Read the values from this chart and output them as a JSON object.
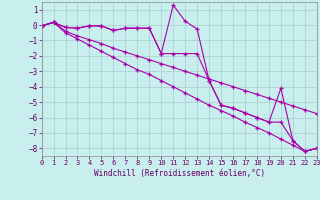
{
  "xlabel": "Windchill (Refroidissement éolien,°C)",
  "background_color": "#c8eeee",
  "line_color": "#aa00aa",
  "grid_color": "#aacccc",
  "xlim": [
    0,
    23
  ],
  "ylim": [
    -8.5,
    1.5
  ],
  "yticks": [
    -8,
    -7,
    -6,
    -5,
    -4,
    -3,
    -2,
    -1,
    0,
    1
  ],
  "xticks": [
    0,
    1,
    2,
    3,
    4,
    5,
    6,
    7,
    8,
    9,
    10,
    11,
    12,
    13,
    14,
    15,
    16,
    17,
    18,
    19,
    20,
    21,
    22,
    23
  ],
  "lines": [
    [
      0,
      -0.05,
      1,
      0.18,
      2,
      -0.15,
      3,
      -0.2,
      4,
      -0.05,
      5,
      -0.05,
      6,
      -0.35,
      7,
      -0.2,
      8,
      -0.2,
      9,
      -0.2,
      10,
      -1.85,
      11,
      1.3,
      12,
      0.25,
      13,
      -0.25,
      14,
      -3.6,
      15,
      -5.2,
      16,
      -5.4,
      17,
      -5.7,
      18,
      -6.0,
      19,
      -6.3,
      20,
      -4.1,
      21,
      -7.5,
      22,
      -8.2,
      23,
      -8.0
    ],
    [
      0,
      -0.05,
      1,
      0.18,
      2,
      -0.15,
      3,
      -0.2,
      4,
      -0.05,
      5,
      -0.05,
      6,
      -0.35,
      7,
      -0.2,
      8,
      -0.2,
      9,
      -0.2,
      10,
      -1.85,
      11,
      -1.85,
      12,
      -1.85,
      13,
      -1.85,
      14,
      -3.6,
      15,
      -5.2,
      16,
      -5.4,
      17,
      -5.7,
      18,
      -6.0,
      19,
      -6.3,
      20,
      -6.3,
      21,
      -7.5,
      22,
      -8.2,
      23,
      -8.0
    ],
    [
      0,
      -0.05,
      1,
      0.18,
      2,
      -0.4,
      3,
      -0.7,
      4,
      -0.95,
      5,
      -1.2,
      6,
      -1.5,
      7,
      -1.75,
      8,
      -2.0,
      9,
      -2.25,
      10,
      -2.5,
      11,
      -2.75,
      12,
      -3.0,
      13,
      -3.25,
      14,
      -3.5,
      15,
      -3.75,
      16,
      -4.0,
      17,
      -4.25,
      18,
      -4.5,
      19,
      -4.75,
      20,
      -5.0,
      21,
      -5.25,
      22,
      -5.5,
      23,
      -5.75
    ],
    [
      0,
      -0.05,
      1,
      0.18,
      2,
      -0.5,
      3,
      -0.9,
      4,
      -1.3,
      5,
      -1.7,
      6,
      -2.1,
      7,
      -2.5,
      8,
      -2.9,
      9,
      -3.2,
      10,
      -3.6,
      11,
      -4.0,
      12,
      -4.4,
      13,
      -4.8,
      14,
      -5.2,
      15,
      -5.55,
      16,
      -5.9,
      17,
      -6.3,
      18,
      -6.65,
      19,
      -7.0,
      20,
      -7.4,
      21,
      -7.8,
      22,
      -8.2,
      23,
      -8.0
    ]
  ]
}
